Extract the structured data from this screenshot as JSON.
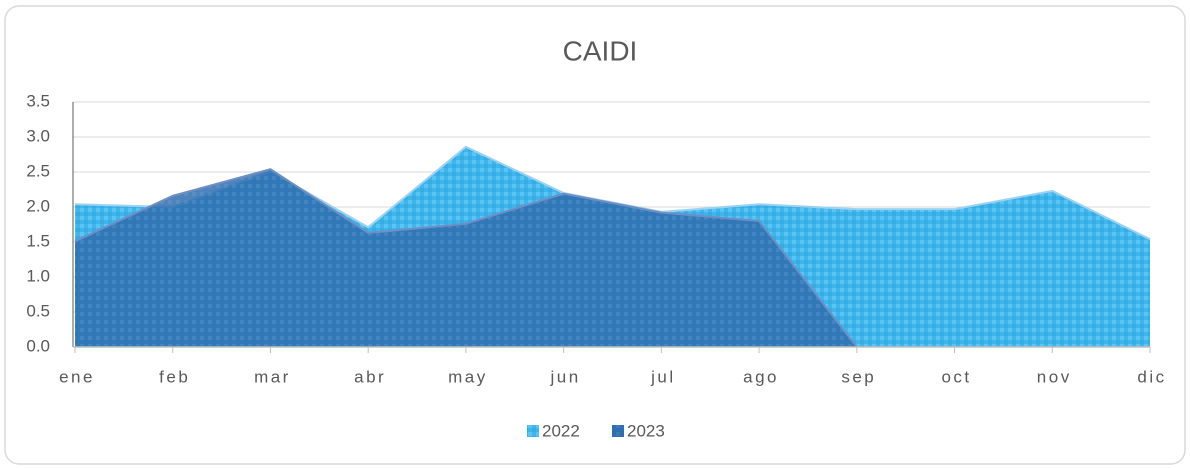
{
  "chart_data": {
    "type": "area",
    "title": "CAIDI",
    "categories": [
      "ene",
      "feb",
      "mar",
      "abr",
      "may",
      "jun",
      "jul",
      "ago",
      "sep",
      "oct",
      "nov",
      "dic"
    ],
    "series": [
      {
        "name": "2022",
        "color": "#3cb6ee",
        "values": [
          2.04,
          2.0,
          2.51,
          1.71,
          2.86,
          2.2,
          1.93,
          2.04,
          1.97,
          1.97,
          2.23,
          1.54
        ]
      },
      {
        "name": "2023",
        "color": "#2f6eb0",
        "values": [
          1.51,
          2.16,
          2.54,
          1.63,
          1.76,
          2.19,
          1.92,
          1.8,
          0,
          null,
          null,
          null
        ]
      }
    ],
    "ylim": [
      0,
      3.5
    ],
    "yticks": [
      {
        "value": 0,
        "label": "0.0"
      },
      0.5,
      {
        "value": 1,
        "label": "1.0"
      },
      1.5,
      {
        "value": 2,
        "label": "2.0"
      },
      2.5,
      {
        "value": 3,
        "label": "3.0"
      },
      3.5
    ],
    "grid": true,
    "legend": "bottom"
  }
}
